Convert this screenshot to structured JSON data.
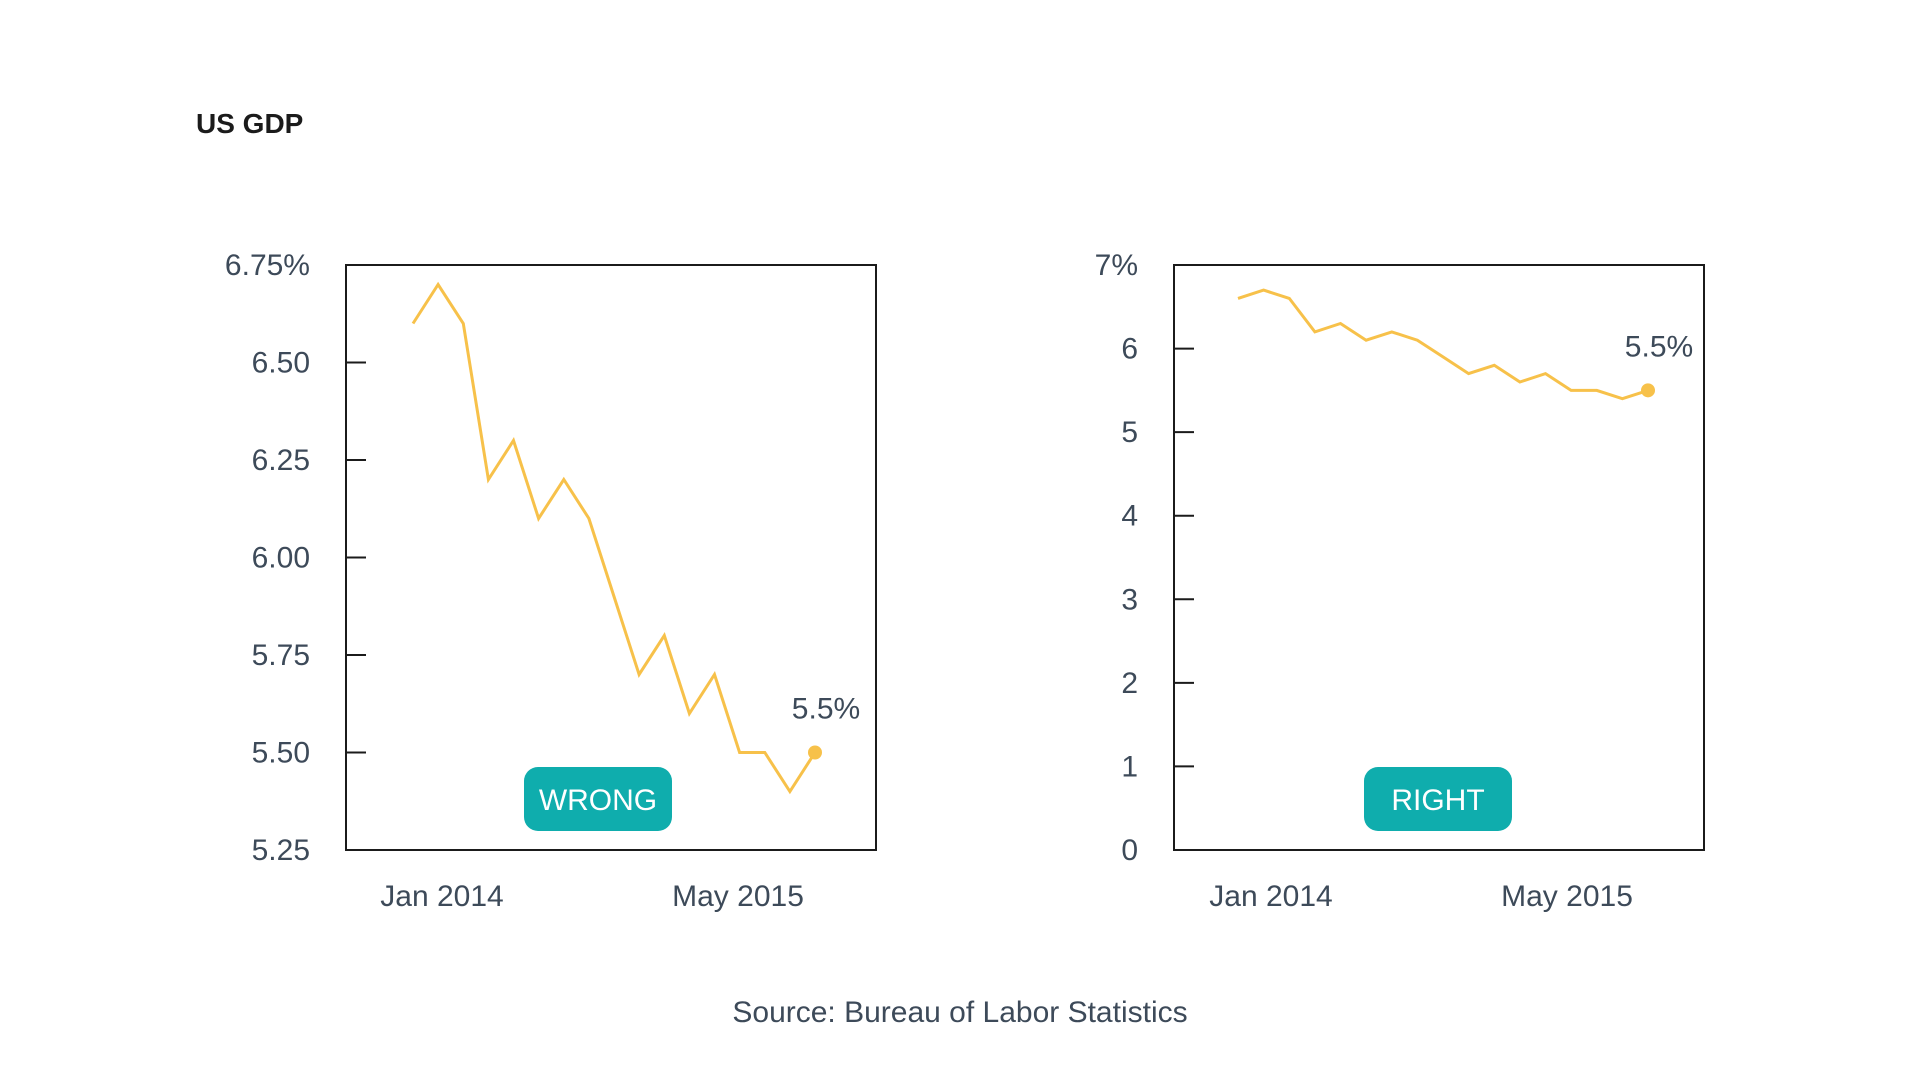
{
  "title": "US GDP",
  "source": "Source: Bureau of Labor Statistics",
  "colors": {
    "line": "#f7c14a",
    "badge": "#0fadad",
    "axis": "#1b1b1b",
    "text": "#3d4a59"
  },
  "chart_data": [
    {
      "type": "line",
      "badge": "WRONG",
      "x_ticks": [
        "Jan  2014",
        "May  2015"
      ],
      "y_ticks": [
        "5.25",
        "5.50",
        "5.75",
        "6.00",
        "6.25",
        "6.50",
        "6.75%"
      ],
      "y_tick_values": [
        5.25,
        5.5,
        5.75,
        6.0,
        6.25,
        6.5,
        6.75
      ],
      "ylim": [
        5.25,
        6.75
      ],
      "x": [
        "Jan 2014",
        "Feb 2014",
        "Mar 2014",
        "Apr 2014",
        "May 2014",
        "Jun 2014",
        "Jul 2014",
        "Aug 2014",
        "Sep 2014",
        "Oct 2014",
        "Nov 2014",
        "Dec 2014",
        "Jan 2015",
        "Feb 2015",
        "Mar 2015",
        "Apr 2015",
        "May 2015"
      ],
      "values": [
        6.6,
        6.7,
        6.6,
        6.2,
        6.3,
        6.1,
        6.2,
        6.1,
        5.9,
        5.7,
        5.8,
        5.6,
        5.7,
        5.5,
        5.5,
        5.4,
        5.5
      ],
      "annotation": "5.5%",
      "grid": false
    },
    {
      "type": "line",
      "badge": "RIGHT",
      "x_ticks": [
        "Jan  2014",
        "May  2015"
      ],
      "y_ticks": [
        "0",
        "1",
        "2",
        "3",
        "4",
        "5",
        "6",
        "7%"
      ],
      "y_tick_values": [
        0,
        1,
        2,
        3,
        4,
        5,
        6,
        7
      ],
      "ylim": [
        0,
        7
      ],
      "x": [
        "Jan 2014",
        "Feb 2014",
        "Mar 2014",
        "Apr 2014",
        "May 2014",
        "Jun 2014",
        "Jul 2014",
        "Aug 2014",
        "Sep 2014",
        "Oct 2014",
        "Nov 2014",
        "Dec 2014",
        "Jan 2015",
        "Feb 2015",
        "Mar 2015",
        "Apr 2015",
        "May 2015"
      ],
      "values": [
        6.6,
        6.7,
        6.6,
        6.2,
        6.3,
        6.1,
        6.2,
        6.1,
        5.9,
        5.7,
        5.8,
        5.6,
        5.7,
        5.5,
        5.5,
        5.4,
        5.5
      ],
      "annotation": "5.5%",
      "grid": false
    }
  ]
}
